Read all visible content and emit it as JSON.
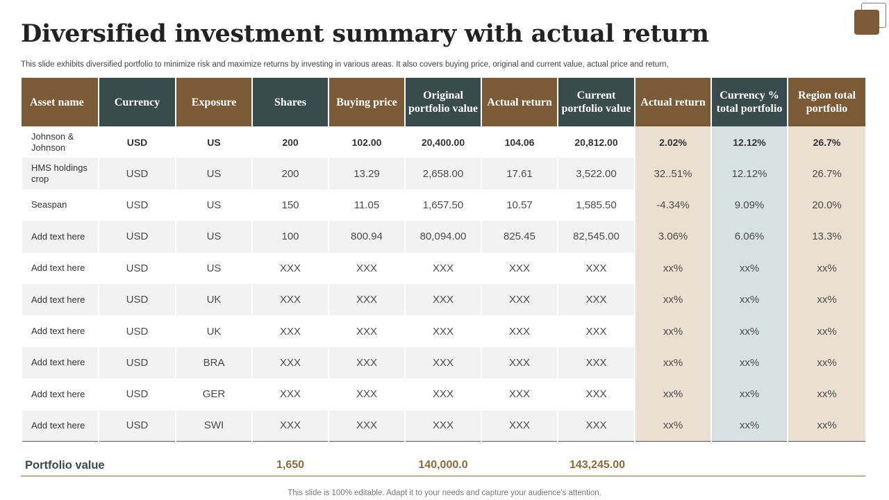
{
  "title": "Diversified investment summary with actual return",
  "subtitle": "This slide exhibits diversified portfolio to minimize risk and maximize returns by investing in various areas. It also covers buying price, original and current value, actual price and return,",
  "headers": [
    "Asset name",
    "Currency",
    "Exposure",
    "Shares",
    "Buying price",
    "Original portfolio value",
    "Actual return",
    "Current portfolio value",
    "Actual return",
    "Currency % total portfolio",
    "Region total portfolio"
  ],
  "rows": [
    [
      "Johnson & Johnson",
      "USD",
      "US",
      "200",
      "102.00",
      "20,400.00",
      "104.06",
      "20,812.00",
      "2.02%",
      "12.12%",
      "26.7%"
    ],
    [
      "HMS holdings crop",
      "USD",
      "US",
      "200",
      "13.29",
      "2,658.00",
      "17.61",
      "3,522.00",
      "32..51%",
      "12.12%",
      "26.7%"
    ],
    [
      "Seaspan",
      "USD",
      "US",
      "150",
      "11.05",
      "1,657.50",
      "10.57",
      "1,585.50",
      "-4.34%",
      "9.09%",
      "20.0%"
    ],
    [
      "Add text here",
      "USD",
      "US",
      "100",
      "800.94",
      "80,094.00",
      "825.45",
      "82,545.00",
      "3.06%",
      "6.06%",
      "13.3%"
    ],
    [
      "Add text here",
      "USD",
      "US",
      "XXX",
      "XXX",
      "XXX",
      "XXX",
      "XXX",
      "xx%",
      "xx%",
      "xx%"
    ],
    [
      "Add text here",
      "USD",
      "UK",
      "XXX",
      "XXX",
      "XXX",
      "XXX",
      "XXX",
      "xx%",
      "xx%",
      "xx%"
    ],
    [
      "Add text here",
      "USD",
      "UK",
      "XXX",
      "XXX",
      "XXX",
      "XXX",
      "XXX",
      "xx%",
      "xx%",
      "xx%"
    ],
    [
      "Add text here",
      "USD",
      "BRA",
      "XXX",
      "XXX",
      "XXX",
      "XXX",
      "XXX",
      "xx%",
      "xx%",
      "xx%"
    ],
    [
      "Add text here",
      "USD",
      "GER",
      "XXX",
      "XXX",
      "XXX",
      "XXX",
      "XXX",
      "xx%",
      "xx%",
      "xx%"
    ],
    [
      "Add text here",
      "USD",
      "SWI",
      "XXX",
      "XXX",
      "XXX",
      "XXX",
      "XXX",
      "xx%",
      "xx%",
      "xx%"
    ]
  ],
  "footer": {
    "label": "Portfolio value",
    "shares_total": "1,650",
    "original_total": "140,000.0",
    "current_total": "143,245.00"
  },
  "note": "This slide is 100% editable. Adapt it to your needs and capture your audience's attention.",
  "colors": {
    "brown": "#7a5a37",
    "slate": "#394b4d",
    "beige": "#ebdfd1",
    "blue": "#d7e1e1"
  }
}
